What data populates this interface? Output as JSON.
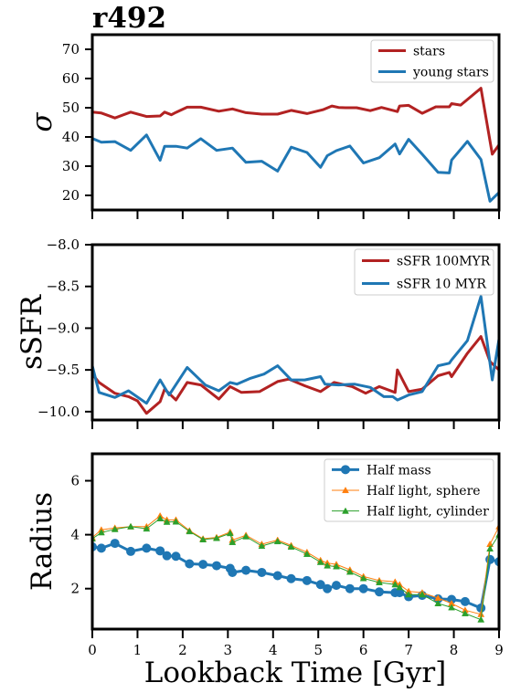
{
  "figure": {
    "title": "r492",
    "xlabel": "Lookback Time [Gyr]"
  },
  "colors": {
    "red": "#b22222",
    "blue": "#1f77b4",
    "orange": "#ff7f0e",
    "green": "#2ca02c"
  },
  "chart_data": [
    {
      "type": "line",
      "ylabel": "σ",
      "xlim": [
        0,
        9
      ],
      "ylim": [
        15,
        75
      ],
      "yticks": [
        20,
        30,
        40,
        50,
        60,
        70
      ],
      "xticks": [
        0,
        1,
        2,
        3,
        4,
        5,
        6,
        7,
        8,
        9
      ],
      "show_xtick_labels": false,
      "legend": "upper right",
      "series": [
        {
          "name": "stars",
          "color": "#b22222",
          "width": 3,
          "x": [
            0,
            0.2,
            0.5,
            0.85,
            1.2,
            1.5,
            1.6,
            1.75,
            1.85,
            2.1,
            2.4,
            2.8,
            3.1,
            3.4,
            3.75,
            4.1,
            4.4,
            4.75,
            5.1,
            5.3,
            5.45,
            5.6,
            5.85,
            6.15,
            6.4,
            6.75,
            6.8,
            7.0,
            7.3,
            7.6,
            7.9,
            7.95,
            8.15,
            8.6,
            8.85,
            9.0
          ],
          "y": [
            48.5,
            48.2,
            46.5,
            48.5,
            47.0,
            47.2,
            48.5,
            47.6,
            48.4,
            50.2,
            50.2,
            48.8,
            49.6,
            48.3,
            47.8,
            47.8,
            49.1,
            48.0,
            49.3,
            50.6,
            50.1,
            50.0,
            50.0,
            49.0,
            50.1,
            48.7,
            50.6,
            50.8,
            48.1,
            50.3,
            50.3,
            51.4,
            50.9,
            56.7,
            34.1,
            37.3
          ]
        },
        {
          "name": "young stars",
          "color": "#1f77b4",
          "width": 3,
          "x": [
            0,
            0.2,
            0.5,
            0.85,
            1.2,
            1.5,
            1.6,
            1.85,
            2.1,
            2.4,
            2.75,
            3.1,
            3.4,
            3.75,
            4.1,
            4.4,
            4.75,
            5.05,
            5.2,
            5.4,
            5.7,
            6.0,
            6.35,
            6.7,
            6.8,
            7.0,
            7.3,
            7.65,
            7.9,
            7.95,
            8.3,
            8.6,
            8.8,
            9.0
          ],
          "y": [
            39.5,
            38.2,
            38.4,
            35.4,
            40.7,
            32.0,
            36.8,
            36.8,
            36.2,
            39.4,
            35.4,
            36.2,
            31.3,
            31.7,
            28.3,
            36.5,
            34.7,
            29.6,
            33.6,
            35.3,
            36.9,
            31.1,
            32.9,
            37.6,
            34.2,
            39.2,
            34.1,
            27.9,
            27.7,
            32.1,
            38.5,
            32.3,
            18.0,
            21.0
          ]
        }
      ]
    },
    {
      "type": "line",
      "ylabel": "sSFR",
      "xlim": [
        0,
        9
      ],
      "ylim": [
        -10.1,
        -8.0
      ],
      "yticks": [
        -10.0,
        -9.5,
        -9.0,
        -8.5,
        -8.0
      ],
      "xticks": [
        0,
        1,
        2,
        3,
        4,
        5,
        6,
        7,
        8,
        9
      ],
      "show_xtick_labels": false,
      "legend": "upper right",
      "series": [
        {
          "name": "sSFR 100MYR",
          "color": "#b22222",
          "width": 3,
          "x": [
            0,
            0.15,
            0.5,
            0.8,
            1.0,
            1.2,
            1.5,
            1.6,
            1.85,
            2.1,
            2.4,
            2.8,
            3.05,
            3.3,
            3.7,
            4.1,
            4.35,
            4.7,
            5.05,
            5.35,
            5.75,
            6.05,
            6.35,
            6.7,
            6.75,
            7.0,
            7.3,
            7.65,
            7.9,
            7.95,
            8.3,
            8.6,
            8.8,
            9.0
          ],
          "y": [
            -9.55,
            -9.65,
            -9.78,
            -9.82,
            -9.87,
            -10.02,
            -9.88,
            -9.73,
            -9.86,
            -9.65,
            -9.68,
            -9.85,
            -9.7,
            -9.77,
            -9.76,
            -9.64,
            -9.61,
            -9.69,
            -9.76,
            -9.65,
            -9.7,
            -9.78,
            -9.7,
            -9.77,
            -9.5,
            -9.76,
            -9.73,
            -9.57,
            -9.53,
            -9.58,
            -9.3,
            -9.1,
            -9.4,
            -9.5
          ]
        },
        {
          "name": "sSFR 10 MYR",
          "color": "#1f77b4",
          "width": 3,
          "x": [
            0,
            0.15,
            0.5,
            0.8,
            1.2,
            1.5,
            1.7,
            2.1,
            2.5,
            2.8,
            3.05,
            3.2,
            3.5,
            3.8,
            4.1,
            4.4,
            4.7,
            5.05,
            5.15,
            5.45,
            5.8,
            6.15,
            6.45,
            6.65,
            6.75,
            7.0,
            7.3,
            7.65,
            7.9,
            7.95,
            8.3,
            8.6,
            8.85,
            9.0
          ],
          "y": [
            -9.45,
            -9.77,
            -9.83,
            -9.75,
            -9.9,
            -9.62,
            -9.8,
            -9.47,
            -9.68,
            -9.75,
            -9.65,
            -9.67,
            -9.6,
            -9.55,
            -9.45,
            -9.62,
            -9.62,
            -9.58,
            -9.67,
            -9.68,
            -9.67,
            -9.71,
            -9.82,
            -9.82,
            -9.86,
            -9.8,
            -9.76,
            -9.45,
            -9.42,
            -9.38,
            -9.15,
            -8.62,
            -9.62,
            -9.13
          ]
        }
      ]
    },
    {
      "type": "line",
      "ylabel": "Radius",
      "xlabel": "Lookback Time [Gyr]",
      "xlim": [
        0,
        9
      ],
      "ylim": [
        0.5,
        7.0
      ],
      "yticks": [
        2,
        4,
        6
      ],
      "xticks": [
        0,
        1,
        2,
        3,
        4,
        5,
        6,
        7,
        8,
        9
      ],
      "show_xtick_labels": true,
      "legend": "upper right",
      "series": [
        {
          "name": "Half mass",
          "color": "#1f77b4",
          "width": 3,
          "marker": "circle",
          "marker_size": 4.5,
          "x": [
            0,
            0.2,
            0.5,
            0.85,
            1.2,
            1.5,
            1.65,
            1.85,
            2.15,
            2.45,
            2.75,
            3.05,
            3.1,
            3.4,
            3.75,
            4.1,
            4.4,
            4.75,
            5.05,
            5.2,
            5.4,
            5.7,
            6.0,
            6.35,
            6.7,
            6.8,
            7.0,
            7.3,
            7.65,
            7.95,
            8.25,
            8.6,
            8.8,
            9.0
          ],
          "y": [
            3.55,
            3.5,
            3.68,
            3.38,
            3.5,
            3.4,
            3.22,
            3.2,
            2.92,
            2.9,
            2.85,
            2.75,
            2.6,
            2.68,
            2.6,
            2.48,
            2.37,
            2.3,
            2.15,
            2.0,
            2.12,
            2.0,
            2.0,
            1.88,
            1.85,
            1.85,
            1.7,
            1.75,
            1.62,
            1.6,
            1.52,
            1.28,
            3.08,
            3.0
          ]
        },
        {
          "name": "Half light, sphere",
          "color": "#ff7f0e",
          "width": 1,
          "marker": "triangle",
          "marker_size": 3.5,
          "x": [
            0,
            0.2,
            0.5,
            0.85,
            1.2,
            1.5,
            1.65,
            1.85,
            2.15,
            2.45,
            2.75,
            3.05,
            3.1,
            3.4,
            3.75,
            4.1,
            4.4,
            4.75,
            5.05,
            5.2,
            5.4,
            5.7,
            6.0,
            6.35,
            6.7,
            6.8,
            7.0,
            7.3,
            7.65,
            7.95,
            8.25,
            8.6,
            8.8,
            9.0
          ],
          "y": [
            3.9,
            4.18,
            4.25,
            4.3,
            4.3,
            4.7,
            4.55,
            4.55,
            4.15,
            3.85,
            3.9,
            4.1,
            3.8,
            3.98,
            3.65,
            3.8,
            3.6,
            3.35,
            3.05,
            2.95,
            2.9,
            2.7,
            2.45,
            2.3,
            2.25,
            2.15,
            1.9,
            1.85,
            1.65,
            1.45,
            1.2,
            1.05,
            3.65,
            4.3
          ]
        },
        {
          "name": "Half light, cylinder",
          "color": "#2ca02c",
          "width": 1,
          "marker": "triangle",
          "marker_size": 3.5,
          "x": [
            0,
            0.2,
            0.5,
            0.85,
            1.2,
            1.5,
            1.65,
            1.85,
            2.15,
            2.45,
            2.75,
            3.05,
            3.1,
            3.4,
            3.75,
            4.1,
            4.4,
            4.75,
            5.05,
            5.2,
            5.4,
            5.7,
            6.0,
            6.35,
            6.7,
            6.8,
            7.0,
            7.3,
            7.65,
            7.95,
            8.25,
            8.6,
            8.8,
            9.0
          ],
          "y": [
            3.85,
            4.08,
            4.2,
            4.3,
            4.22,
            4.6,
            4.47,
            4.48,
            4.12,
            3.82,
            3.87,
            4.05,
            3.72,
            3.93,
            3.58,
            3.75,
            3.55,
            3.28,
            2.98,
            2.85,
            2.82,
            2.62,
            2.38,
            2.23,
            2.15,
            2.05,
            1.78,
            1.78,
            1.45,
            1.3,
            1.08,
            0.85,
            3.48,
            4.0
          ]
        }
      ]
    }
  ]
}
